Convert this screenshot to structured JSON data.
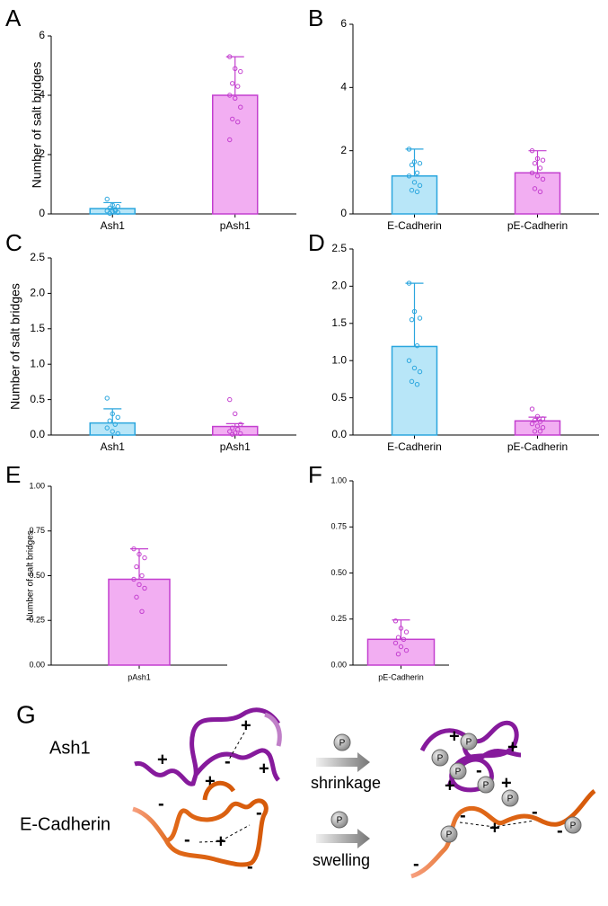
{
  "chart_data": [
    {
      "type": "bar",
      "label": "A",
      "ylabel": "Number of salt bridges",
      "categories": [
        "Ash1",
        "pAsh1"
      ],
      "values": [
        0.18,
        4.0
      ],
      "errors": [
        0.2,
        1.3
      ],
      "points": [
        [
          0.5,
          0.3,
          0.25,
          0.2,
          0.15,
          0.1,
          0.08,
          0.05,
          0.02,
          0.1
        ],
        [
          5.3,
          4.9,
          4.8,
          4.4,
          4.3,
          4.0,
          3.9,
          3.6,
          3.2,
          3.1,
          2.5
        ]
      ],
      "colors": [
        "#b8e6f8",
        "#f2aef2"
      ],
      "edge_colors": [
        "#2ba6de",
        "#c33fcf"
      ],
      "ylim": [
        0,
        6
      ],
      "yticks": [
        0,
        2,
        4,
        6
      ]
    },
    {
      "type": "bar",
      "label": "B",
      "categories": [
        "E-Cadherin",
        "pE-Cadherin"
      ],
      "values": [
        1.2,
        1.3
      ],
      "errors": [
        0.85,
        0.7
      ],
      "points": [
        [
          2.05,
          1.65,
          1.6,
          1.55,
          1.3,
          1.2,
          1.0,
          0.9,
          0.75,
          0.7
        ],
        [
          2.0,
          1.75,
          1.7,
          1.6,
          1.45,
          1.3,
          1.2,
          1.1,
          0.8,
          0.7
        ]
      ],
      "colors": [
        "#b8e6f8",
        "#f2aef2"
      ],
      "edge_colors": [
        "#2ba6de",
        "#c33fcf"
      ],
      "ylim": [
        0,
        6
      ],
      "yticks": [
        0,
        2,
        4,
        6
      ]
    },
    {
      "type": "bar",
      "label": "C",
      "ylabel": "Number of salt bridges",
      "categories": [
        "Ash1",
        "pAsh1"
      ],
      "values": [
        0.17,
        0.12
      ],
      "errors": [
        0.2,
        0.04
      ],
      "points": [
        [
          0.52,
          0.3,
          0.25,
          0.2,
          0.15,
          0.1,
          0.05,
          0.02
        ],
        [
          0.5,
          0.3,
          0.15,
          0.1,
          0.08,
          0.05,
          0.03,
          0.02,
          0.01
        ]
      ],
      "colors": [
        "#b8e6f8",
        "#f2aef2"
      ],
      "edge_colors": [
        "#2ba6de",
        "#c33fcf"
      ],
      "ylim": [
        0,
        2.5
      ],
      "yticks": [
        {
          "value": 0,
          "label": "0.0"
        },
        0.5,
        {
          "value": 1,
          "label": "1.0"
        },
        1.5,
        {
          "value": 2,
          "label": "2.0"
        },
        2.5
      ]
    },
    {
      "type": "bar",
      "label": "D",
      "categories": [
        "E-Cadherin",
        "pE-Cadherin"
      ],
      "values": [
        1.19,
        0.19
      ],
      "errors": [
        0.85,
        0.05
      ],
      "points": [
        [
          2.04,
          1.66,
          1.57,
          1.55,
          1.2,
          1.0,
          0.9,
          0.85,
          0.72,
          0.68
        ],
        [
          0.35,
          0.25,
          0.22,
          0.2,
          0.18,
          0.15,
          0.12,
          0.1,
          0.05,
          0.05
        ]
      ],
      "colors": [
        "#b8e6f8",
        "#f2aef2"
      ],
      "edge_colors": [
        "#2ba6de",
        "#c33fcf"
      ],
      "ylim": [
        0,
        2.5
      ],
      "yticks": [
        {
          "value": 0,
          "label": "0.0"
        },
        0.5,
        {
          "value": 1,
          "label": "1.0"
        },
        1.5,
        {
          "value": 2,
          "label": "2.0"
        },
        2.5
      ]
    },
    {
      "type": "bar",
      "label": "E",
      "ylabel": "Number of salt bridges",
      "categories": [
        "pAsh1"
      ],
      "values": [
        0.48
      ],
      "errors": [
        0.17
      ],
      "points": [
        [
          0.65,
          0.62,
          0.6,
          0.55,
          0.5,
          0.48,
          0.45,
          0.43,
          0.38,
          0.3
        ]
      ],
      "colors": [
        "#f2aef2"
      ],
      "edge_colors": [
        "#c33fcf"
      ],
      "ylim": [
        0,
        1
      ],
      "yticks": [
        {
          "value": 0,
          "label": "0.00"
        },
        {
          "value": 0.25,
          "label": "0.25"
        },
        {
          "value": 0.5,
          "label": "0.50"
        },
        {
          "value": 0.75,
          "label": "0.75"
        },
        {
          "value": 1,
          "label": "1.00"
        }
      ]
    },
    {
      "type": "bar",
      "label": "F",
      "categories": [
        "pE-Cadherin"
      ],
      "values": [
        0.14
      ],
      "errors": [
        0.105
      ],
      "points": [
        [
          0.24,
          0.2,
          0.18,
          0.15,
          0.14,
          0.12,
          0.1,
          0.08,
          0.06
        ]
      ],
      "colors": [
        "#f2aef2"
      ],
      "edge_colors": [
        "#c33fcf"
      ],
      "ylim": [
        0,
        1
      ],
      "yticks": [
        {
          "value": 0,
          "label": "0.00"
        },
        {
          "value": 0.25,
          "label": "0.25"
        },
        {
          "value": 0.5,
          "label": "0.50"
        },
        {
          "value": 0.75,
          "label": "0.75"
        },
        {
          "value": 1,
          "label": "1.00"
        }
      ]
    }
  ],
  "diagram": {
    "label": "G",
    "rows": [
      {
        "name": "Ash1",
        "arrow_label": "shrinkage"
      },
      {
        "name": "E-Cadherin",
        "arrow_label": "swelling"
      }
    ],
    "symbols": {
      "plus": "+",
      "minus": "-",
      "phospho": "P"
    }
  }
}
